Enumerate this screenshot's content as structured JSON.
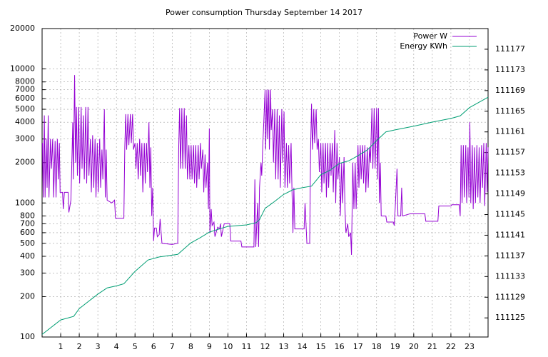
{
  "chart_data": {
    "type": "line",
    "title": "Power consumption Thursday September 14 2017",
    "xlim": [
      0,
      24
    ],
    "xticks": [
      1,
      2,
      3,
      4,
      5,
      6,
      7,
      8,
      9,
      10,
      11,
      12,
      13,
      14,
      15,
      16,
      17,
      18,
      19,
      20,
      21,
      22,
      23
    ],
    "ylim": [
      100,
      20000
    ],
    "yticks": [
      100,
      200,
      300,
      400,
      500,
      600,
      700,
      800,
      1000,
      2000,
      3000,
      4000,
      5000,
      6000,
      7000,
      8000,
      10000,
      20000
    ],
    "log_y": true,
    "y2lim": [
      111121.3,
      111181
    ],
    "y2ticks": [
      111125,
      111129,
      111133,
      111137,
      111141,
      111145,
      111149,
      111153,
      111157,
      111161,
      111165,
      111169,
      111173,
      111177
    ],
    "grid": true,
    "legend": "top-right",
    "series": [
      {
        "name": "Power W",
        "color": "#9400d3",
        "x": [
          0.02,
          0.06,
          0.12,
          0.16,
          0.22,
          0.27,
          0.33,
          0.37,
          0.45,
          0.5,
          0.57,
          0.62,
          0.7,
          0.75,
          0.82,
          0.87,
          0.93,
          0.97,
          1.1,
          1.14,
          1.2,
          1.4,
          1.44,
          1.55,
          1.6,
          1.65,
          1.68,
          1.75,
          1.8,
          1.85,
          1.9,
          1.97,
          2.02,
          2.1,
          2.15,
          2.22,
          2.27,
          2.35,
          2.4,
          2.47,
          2.52,
          2.6,
          2.65,
          2.72,
          2.78,
          2.85,
          2.9,
          2.97,
          3.02,
          3.1,
          3.15,
          3.22,
          3.27,
          3.35,
          3.4,
          3.45,
          3.5,
          3.75,
          3.9,
          3.95,
          4.4,
          4.45,
          4.5,
          4.55,
          4.62,
          4.67,
          4.75,
          4.8,
          4.87,
          4.92,
          5.0,
          5.05,
          5.12,
          5.17,
          5.25,
          5.3,
          5.37,
          5.42,
          5.5,
          5.55,
          5.62,
          5.67,
          5.75,
          5.8,
          5.85,
          5.9,
          5.95,
          6.0,
          6.05,
          6.15,
          6.2,
          6.3,
          6.35,
          6.45,
          7.0,
          7.3,
          7.35,
          7.4,
          7.45,
          7.52,
          7.57,
          7.65,
          7.7,
          7.77,
          7.82,
          7.9,
          7.95,
          8.02,
          8.07,
          8.15,
          8.2,
          8.27,
          8.32,
          8.4,
          8.45,
          8.52,
          8.57,
          8.65,
          8.7,
          8.77,
          8.82,
          8.9,
          8.95,
          9.0,
          9.03,
          9.1,
          9.15,
          9.25,
          9.3,
          9.45,
          9.55,
          9.6,
          9.65,
          9.8,
          10.1,
          10.15,
          10.7,
          10.75,
          11.4,
          11.45,
          11.5,
          11.6,
          11.65,
          11.7,
          11.78,
          11.82,
          11.88,
          11.93,
          12.0,
          12.03,
          12.1,
          12.13,
          12.2,
          12.23,
          12.3,
          12.33,
          12.4,
          12.45,
          12.52,
          12.57,
          12.65,
          12.7,
          12.77,
          12.82,
          12.9,
          12.95,
          13.02,
          13.07,
          13.15,
          13.2,
          13.27,
          13.32,
          13.4,
          13.45,
          13.5,
          13.55,
          13.6,
          14.1,
          14.15,
          14.25,
          14.4,
          14.45,
          14.5,
          14.55,
          14.62,
          14.67,
          14.75,
          14.8,
          14.87,
          14.92,
          15.0,
          15.05,
          15.12,
          15.17,
          15.25,
          15.3,
          15.37,
          15.42,
          15.5,
          15.55,
          15.62,
          15.67,
          15.75,
          15.8,
          15.87,
          15.92,
          16.0,
          16.05,
          16.12,
          16.17,
          16.25,
          16.3,
          16.35,
          16.45,
          16.5,
          16.6,
          16.65,
          16.72,
          16.78,
          16.85,
          16.9,
          17.0,
          17.05,
          17.12,
          17.17,
          17.25,
          17.3,
          17.37,
          17.42,
          17.5,
          17.55,
          17.62,
          17.67,
          17.75,
          17.8,
          17.87,
          17.92,
          18.0,
          18.05,
          18.1,
          18.15,
          18.2,
          18.25,
          18.5,
          18.55,
          18.9,
          18.95,
          19.0,
          19.1,
          19.15,
          19.3,
          19.35,
          19.4,
          19.8,
          20.6,
          20.65,
          21.3,
          21.35,
          22.0,
          22.05,
          22.45,
          22.5,
          22.55,
          22.6,
          22.67,
          22.72,
          22.8,
          22.85,
          22.92,
          22.97,
          23.02,
          23.07,
          23.15,
          23.2,
          23.27,
          23.32,
          23.4,
          23.45,
          23.52,
          23.57,
          23.65,
          23.7,
          23.77,
          23.82,
          23.9,
          23.95,
          24.0
        ],
        "values": [
          2800,
          1100,
          4500,
          1100,
          3000,
          1300,
          4500,
          1100,
          3000,
          1800,
          3000,
          1100,
          2900,
          1100,
          3000,
          1500,
          2800,
          1200,
          1200,
          900,
          1200,
          1200,
          850,
          1050,
          2000,
          4000,
          1500,
          9000,
          2000,
          5200,
          1600,
          5200,
          1400,
          5200,
          1800,
          4500,
          1500,
          5200,
          1400,
          5200,
          1600,
          3000,
          1200,
          3200,
          1300,
          3000,
          1100,
          2800,
          1200,
          3000,
          1300,
          2500,
          1500,
          5000,
          1100,
          2500,
          1050,
          1000,
          1050,
          770,
          770,
          2600,
          4600,
          2500,
          4600,
          2700,
          4600,
          2800,
          4600,
          2500,
          2800,
          1800,
          2800,
          1500,
          3000,
          1600,
          2800,
          1200,
          2800,
          1400,
          2800,
          1700,
          4000,
          1300,
          2600,
          800,
          1300,
          520,
          650,
          650,
          560,
          580,
          760,
          500,
          490,
          500,
          2500,
          5100,
          1800,
          5100,
          1800,
          5100,
          1800,
          4500,
          1500,
          2700,
          1500,
          2700,
          1500,
          2700,
          1400,
          2700,
          1300,
          2700,
          1500,
          2800,
          1800,
          2500,
          1200,
          2300,
          1300,
          2000,
          900,
          3600,
          600,
          900,
          680,
          720,
          560,
          660,
          640,
          700,
          560,
          700,
          700,
          520,
          520,
          470,
          470,
          1500,
          470,
          1000,
          470,
          1300,
          2000,
          1600,
          2800,
          4000,
          7000,
          2500,
          7000,
          3000,
          7000,
          2500,
          7000,
          3500,
          5000,
          2000,
          5000,
          1500,
          5000,
          1500,
          4500,
          1300,
          5000,
          2000,
          4800,
          1300,
          2800,
          1300,
          2700,
          1400,
          2800,
          1200,
          600,
          1300,
          640,
          640,
          1000,
          500,
          500,
          2500,
          5500,
          2500,
          5000,
          2800,
          5000,
          2500,
          3000,
          1700,
          2800,
          1200,
          2800,
          1400,
          2800,
          1100,
          2800,
          1300,
          2800,
          1600,
          2800,
          1200,
          3500,
          1000,
          2800,
          1500,
          2200,
          800,
          2000,
          1000,
          2200,
          900,
          600,
          700,
          560,
          600,
          410,
          2000,
          900,
          2000,
          900,
          2700,
          1300,
          2700,
          1500,
          2700,
          1400,
          2700,
          1200,
          2600,
          1300,
          2600,
          2000,
          5100,
          1800,
          5100,
          1800,
          5100,
          1500,
          5100,
          1000,
          2000,
          800,
          800,
          720,
          720,
          680,
          900,
          1800,
          800,
          800,
          1300,
          800,
          830,
          830,
          730,
          730,
          950,
          950,
          970,
          970,
          800,
          2700,
          1000,
          2700,
          1100,
          2700,
          1000,
          2600,
          1100,
          4000,
          1000,
          2700,
          900,
          2600,
          1000,
          2700,
          1100,
          2600,
          1000,
          2700,
          1300,
          2800,
          950,
          2800,
          1200,
          2600
        ]
      },
      {
        "name": "Energy KWh",
        "color": "#009e73",
        "axis": "y2",
        "x": [
          0,
          1,
          1.7,
          2,
          3,
          3.5,
          4,
          4.4,
          5,
          5.7,
          6.3,
          7.3,
          8,
          8.5,
          9,
          9.7,
          10,
          11,
          11.5,
          11.7,
          12,
          12.5,
          13,
          13.5,
          14,
          14.5,
          15,
          15.5,
          16,
          16.5,
          17,
          17.5,
          18,
          18.5,
          19,
          20,
          21,
          22,
          22.5,
          23,
          24
        ],
        "values": [
          111121.8,
          111124.6,
          111125.3,
          111126.8,
          111129.6,
          111130.8,
          111131.2,
          111131.6,
          111134,
          111136.2,
          111136.8,
          111137.3,
          111139.5,
          111140.5,
          111141.6,
          111142.4,
          111142.7,
          111143,
          111143.4,
          111144,
          111146.2,
          111147.5,
          111148.9,
          111149.8,
          111150.2,
          111150.5,
          111152.7,
          111153.6,
          111154.9,
          111155.4,
          111156.4,
          111157.5,
          111159.3,
          111161,
          111161.4,
          111162.1,
          111162.9,
          111163.6,
          111164.1,
          111165.7,
          111167.7
        ]
      }
    ]
  }
}
